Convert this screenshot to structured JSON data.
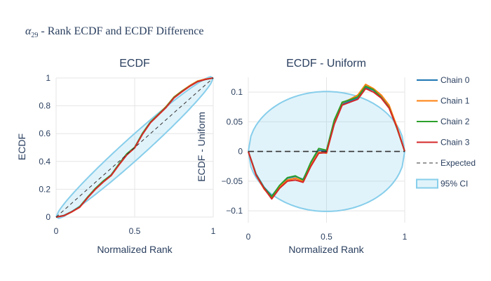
{
  "figure": {
    "title_symbol": "α",
    "title_subscript": "29",
    "title_text": " - Rank ECDF and ECDF Difference"
  },
  "colors": {
    "chain_0": "#1f77b4",
    "chain_1": "#ff7f0e",
    "chain_2": "#2ca02c",
    "chain_3": "#d62728",
    "expected": "#333333",
    "ci_line": "#87ceeb",
    "ci_fill": "rgba(135,206,235,0.25)",
    "grid": "#e5e5e5",
    "text": "#2a3f5f"
  },
  "legend": {
    "items": [
      {
        "label": "Chain 0",
        "kind": "line",
        "color": "#1f77b4"
      },
      {
        "label": "Chain 1",
        "kind": "line",
        "color": "#ff7f0e"
      },
      {
        "label": "Chain 2",
        "kind": "line",
        "color": "#2ca02c"
      },
      {
        "label": "Chain 3",
        "kind": "line",
        "color": "#d62728"
      },
      {
        "label": "Expected",
        "kind": "dash",
        "color": "#333333"
      },
      {
        "label": "95% CI",
        "kind": "band",
        "color": "#87ceeb"
      }
    ]
  },
  "chart_data": [
    {
      "type": "line",
      "title": "ECDF",
      "xlabel": "Normalized Rank",
      "ylabel": "ECDF",
      "xlim": [
        0,
        1
      ],
      "ylim": [
        0,
        1
      ],
      "xticks": [
        0,
        0.5,
        1
      ],
      "xtick_labels": [
        "0",
        "0.5",
        "1"
      ],
      "yticks": [
        0,
        0.2,
        0.4,
        0.6,
        0.8,
        1
      ],
      "ytick_labels": [
        "0",
        "0.2",
        "0.4",
        "0.6",
        "0.8",
        "1"
      ],
      "grid": true,
      "x": [
        0,
        0.05,
        0.1,
        0.15,
        0.2,
        0.25,
        0.3,
        0.35,
        0.4,
        0.45,
        0.5,
        0.55,
        0.6,
        0.65,
        0.7,
        0.75,
        0.8,
        0.85,
        0.9,
        0.95,
        1
      ],
      "series": [
        {
          "name": "Chain 0",
          "values": [
            0,
            0.012,
            0.04,
            0.075,
            0.142,
            0.205,
            0.258,
            0.303,
            0.38,
            0.452,
            0.5,
            0.6,
            0.68,
            0.735,
            0.79,
            0.858,
            0.903,
            0.942,
            0.975,
            0.99,
            1
          ]
        },
        {
          "name": "Chain 1",
          "values": [
            0,
            0.01,
            0.037,
            0.072,
            0.14,
            0.202,
            0.255,
            0.3,
            0.377,
            0.449,
            0.497,
            0.598,
            0.682,
            0.738,
            0.795,
            0.863,
            0.906,
            0.945,
            0.978,
            0.992,
            1
          ]
        },
        {
          "name": "Chain 2",
          "values": [
            0,
            0.011,
            0.039,
            0.074,
            0.143,
            0.206,
            0.259,
            0.302,
            0.382,
            0.455,
            0.502,
            0.603,
            0.683,
            0.737,
            0.792,
            0.86,
            0.904,
            0.941,
            0.974,
            0.989,
            1
          ]
        },
        {
          "name": "Chain 3",
          "values": [
            0,
            0.01,
            0.038,
            0.07,
            0.138,
            0.2,
            0.252,
            0.298,
            0.375,
            0.447,
            0.498,
            0.596,
            0.678,
            0.733,
            0.788,
            0.856,
            0.9,
            0.94,
            0.973,
            0.99,
            1
          ]
        },
        {
          "name": "Expected",
          "values": [
            0,
            0.05,
            0.1,
            0.15,
            0.2,
            0.25,
            0.3,
            0.35,
            0.4,
            0.45,
            0.5,
            0.55,
            0.6,
            0.65,
            0.7,
            0.75,
            0.8,
            0.85,
            0.9,
            0.95,
            1
          ]
        }
      ],
      "ci_halfwidth_at_half": 0.101
    },
    {
      "type": "line",
      "title": "ECDF - Uniform",
      "xlabel": "Normalized Rank",
      "ylabel": "ECDF - Uniform",
      "xlim": [
        0,
        1
      ],
      "ylim": [
        -0.12,
        0.125
      ],
      "xticks": [
        0,
        0.5,
        1
      ],
      "xtick_labels": [
        "0",
        "0.5",
        "1"
      ],
      "yticks": [
        -0.1,
        -0.05,
        0,
        0.05,
        0.1
      ],
      "ytick_labels": [
        "−0.1",
        "−0.05",
        "0",
        "0.05",
        "0.1"
      ],
      "grid": true,
      "x": [
        0,
        0.05,
        0.1,
        0.15,
        0.2,
        0.25,
        0.3,
        0.35,
        0.4,
        0.45,
        0.5,
        0.55,
        0.6,
        0.65,
        0.7,
        0.75,
        0.8,
        0.85,
        0.9,
        0.95,
        1
      ],
      "series": [
        {
          "name": "Chain 0",
          "values": [
            0,
            -0.038,
            -0.06,
            -0.075,
            -0.058,
            -0.045,
            -0.042,
            -0.047,
            -0.02,
            0.002,
            0,
            0.05,
            0.08,
            0.085,
            0.09,
            0.108,
            0.103,
            0.092,
            0.075,
            0.04,
            0
          ]
        },
        {
          "name": "Chain 1",
          "values": [
            0,
            -0.04,
            -0.063,
            -0.078,
            -0.06,
            -0.048,
            -0.045,
            -0.05,
            -0.023,
            -0.001,
            -0.003,
            0.048,
            0.082,
            0.088,
            0.095,
            0.113,
            0.106,
            0.095,
            0.078,
            0.042,
            0
          ]
        },
        {
          "name": "Chain 2",
          "values": [
            0,
            -0.039,
            -0.061,
            -0.076,
            -0.057,
            -0.044,
            -0.041,
            -0.048,
            -0.018,
            0.005,
            0.002,
            0.053,
            0.083,
            0.087,
            0.092,
            0.11,
            0.104,
            0.091,
            0.074,
            0.039,
            0
          ]
        },
        {
          "name": "Chain 3",
          "values": [
            0,
            -0.04,
            -0.062,
            -0.08,
            -0.062,
            -0.05,
            -0.048,
            -0.052,
            -0.025,
            -0.003,
            -0.002,
            0.046,
            0.078,
            0.083,
            0.088,
            0.106,
            0.1,
            0.09,
            0.073,
            0.04,
            0
          ]
        },
        {
          "name": "Expected",
          "values": [
            0,
            0,
            0,
            0,
            0,
            0,
            0,
            0,
            0,
            0,
            0,
            0,
            0,
            0,
            0,
            0,
            0,
            0,
            0,
            0,
            0
          ]
        }
      ],
      "ci_halfwidth_at_half": 0.101
    }
  ]
}
